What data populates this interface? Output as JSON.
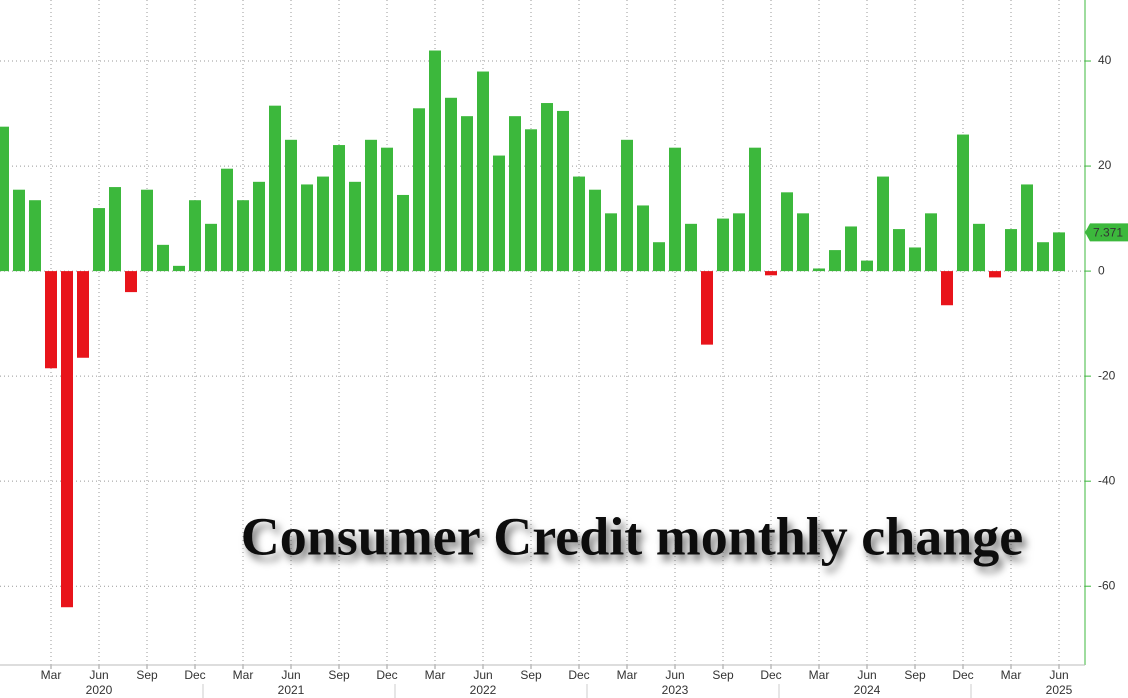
{
  "chart_data": {
    "type": "bar",
    "title": "Consumer Credit monthly change",
    "categories": [
      null,
      null,
      null,
      "Mar",
      null,
      null,
      "Jun",
      null,
      null,
      "Sep",
      null,
      null,
      "Dec",
      null,
      null,
      "Mar",
      null,
      null,
      "Jun",
      null,
      null,
      "Sep",
      null,
      null,
      "Dec",
      null,
      null,
      "Mar",
      null,
      null,
      "Jun",
      null,
      null,
      "Sep",
      null,
      null,
      "Dec",
      null,
      null,
      "Mar",
      null,
      null,
      "Jun",
      null,
      null,
      "Sep",
      null,
      null,
      "Dec",
      null,
      null,
      "Mar",
      null,
      null,
      "Jun",
      null,
      null,
      "Sep",
      null,
      null,
      "Dec",
      null,
      null,
      "Mar",
      null,
      null,
      "Jun"
    ],
    "year_categories": [
      null,
      null,
      null,
      null,
      null,
      null,
      "2020",
      null,
      null,
      null,
      null,
      null,
      null,
      null,
      null,
      null,
      null,
      null,
      "2021",
      null,
      null,
      null,
      null,
      null,
      null,
      null,
      null,
      null,
      null,
      null,
      "2022",
      null,
      null,
      null,
      null,
      null,
      null,
      null,
      null,
      null,
      null,
      null,
      "2023",
      null,
      null,
      null,
      null,
      null,
      null,
      null,
      null,
      null,
      null,
      null,
      "2024",
      null,
      null,
      null,
      null,
      null,
      null,
      null,
      null,
      null,
      null,
      null,
      "2025"
    ],
    "values": [
      27.5,
      15.5,
      13.5,
      -18.5,
      -64,
      -16.5,
      12,
      16,
      -4,
      15.5,
      5,
      1,
      13.5,
      9,
      19.5,
      13.5,
      17,
      31.5,
      25,
      16.5,
      18,
      24,
      17,
      25,
      23.5,
      14.5,
      31,
      42,
      33,
      29.5,
      38,
      22,
      29.5,
      27,
      32,
      30.5,
      18,
      15.5,
      11,
      25,
      12.5,
      5.5,
      23.5,
      9,
      -14,
      10,
      11,
      23.5,
      -0.8,
      15,
      11,
      0.5,
      4,
      8.5,
      2,
      18,
      8,
      4.5,
      11,
      -6.5,
      26,
      9,
      -1.2,
      8,
      16.5,
      5.5,
      7.371
    ],
    "colors": {
      "positive": "#3cb83c",
      "negative": "#e8141b"
    },
    "ylim": [
      -75,
      52
    ],
    "yticks": [
      -60,
      -40,
      -20,
      0,
      20,
      40
    ],
    "grid": true
  }
}
